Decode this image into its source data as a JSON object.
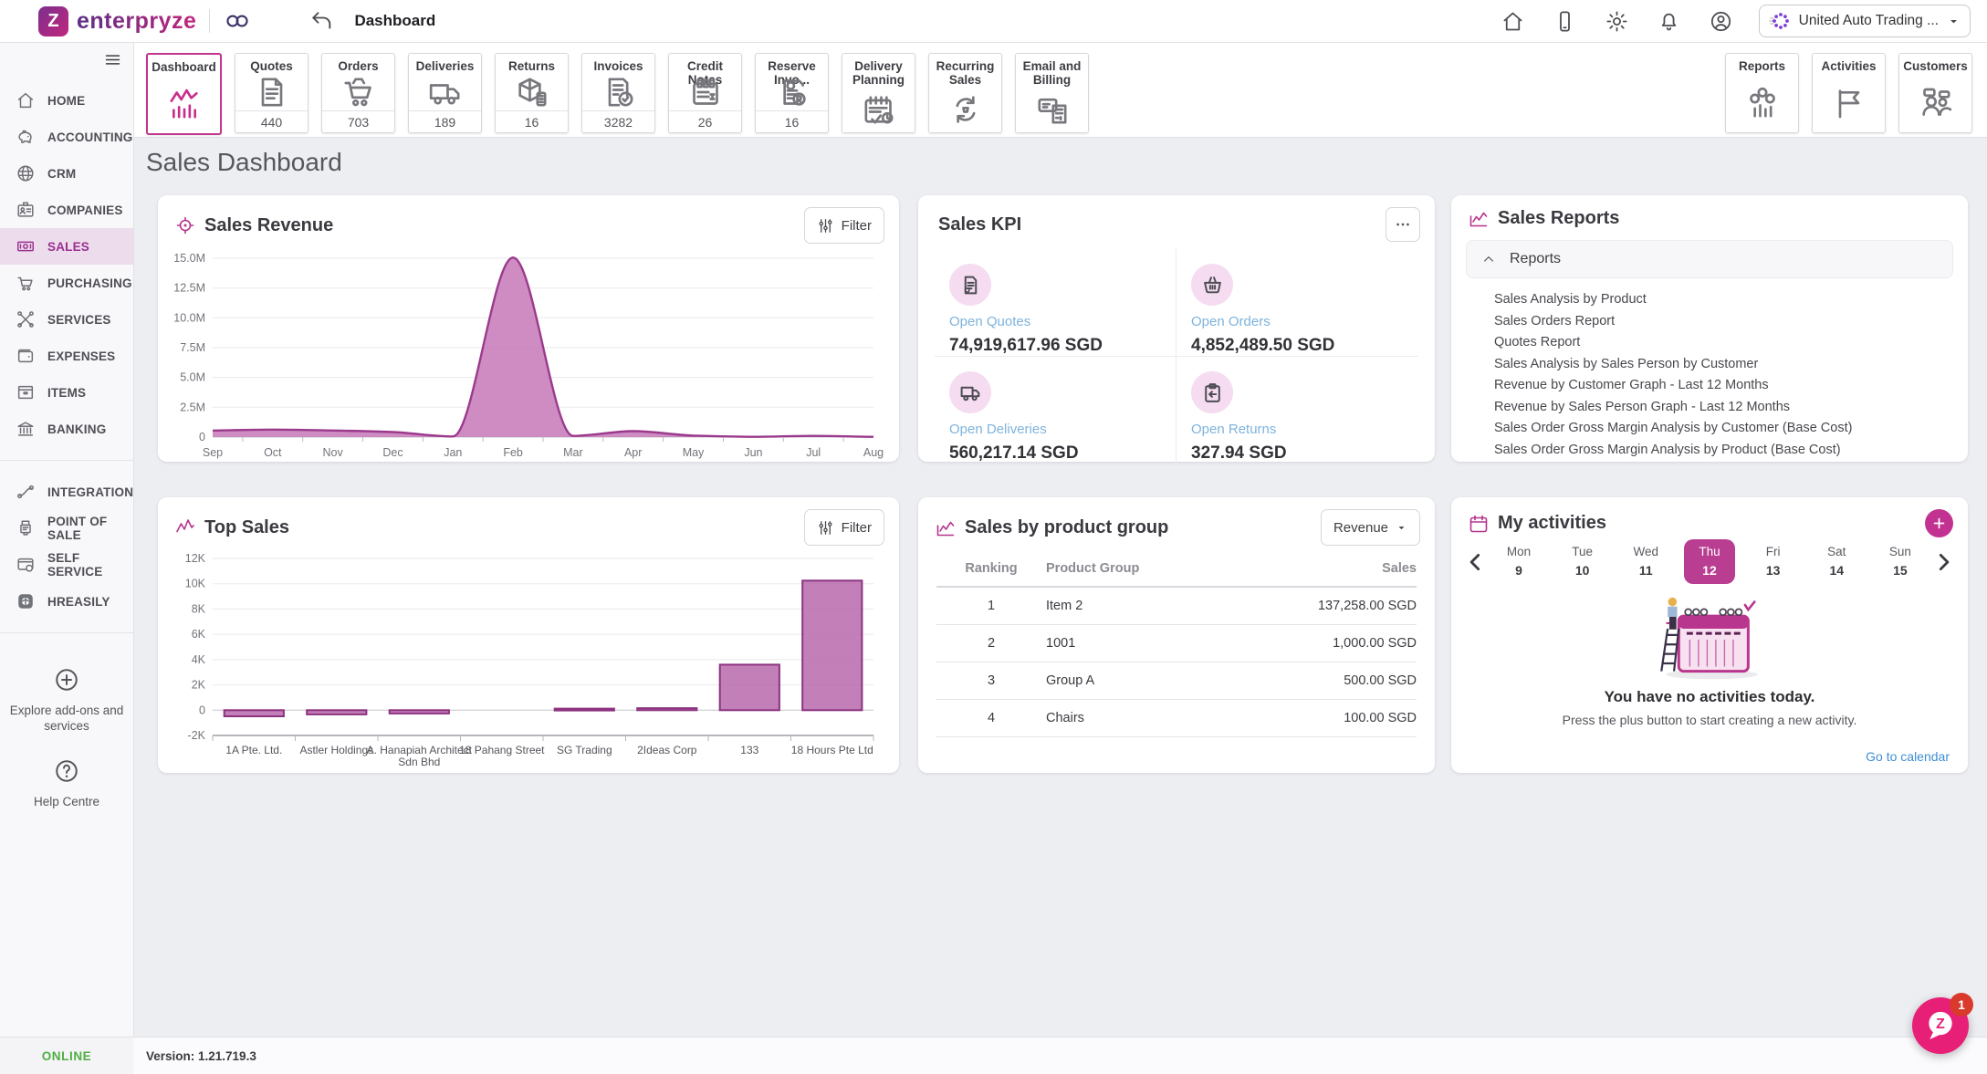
{
  "header": {
    "brand": "enterpryze",
    "brand_letter": "Z",
    "back_title": "Dashboard",
    "icons": [
      "home-icon",
      "mobile-icon",
      "gear-icon",
      "bell-icon",
      "user-icon"
    ],
    "company": "United Auto Trading ..."
  },
  "toolbar": {
    "tabs": [
      {
        "label": "Dashboard",
        "icon": "t-dashboard",
        "count": null,
        "active": true
      },
      {
        "label": "Quotes",
        "icon": "t-quotes",
        "count": "440"
      },
      {
        "label": "Orders",
        "icon": "t-orders",
        "count": "703"
      },
      {
        "label": "Deliveries",
        "icon": "t-deliveries",
        "count": "189"
      },
      {
        "label": "Returns",
        "icon": "t-returns",
        "count": "16"
      },
      {
        "label": "Invoices",
        "icon": "t-invoices",
        "count": "3282"
      },
      {
        "label": "Credit Notes",
        "icon": "t-creditnotes",
        "count": "26"
      },
      {
        "label": "Reserve Invo...",
        "icon": "t-reserveinv",
        "count": "16"
      },
      {
        "label": "Delivery Planning",
        "icon": "t-delivplan",
        "count": null
      },
      {
        "label": "Recurring Sales",
        "icon": "t-recurring",
        "count": null
      },
      {
        "label": "Email and Billing",
        "icon": "t-billing",
        "count": null
      }
    ],
    "right_tabs": [
      {
        "label": "Reports",
        "icon": "t-reports",
        "count": null
      },
      {
        "label": "Activities",
        "icon": "t-flag",
        "count": null
      },
      {
        "label": "Customers",
        "icon": "t-customers",
        "count": null
      }
    ]
  },
  "sidebar": {
    "items": [
      {
        "label": "HOME",
        "icon": "s-home"
      },
      {
        "label": "ACCOUNTING",
        "icon": "s-accounting"
      },
      {
        "label": "CRM",
        "icon": "s-crm"
      },
      {
        "label": "COMPANIES",
        "icon": "s-companies"
      },
      {
        "label": "SALES",
        "icon": "s-sales",
        "active": true
      },
      {
        "label": "PURCHASING",
        "icon": "s-purchasing"
      },
      {
        "label": "SERVICES",
        "icon": "s-services"
      },
      {
        "label": "EXPENSES",
        "icon": "s-expenses"
      },
      {
        "label": "ITEMS",
        "icon": "s-items"
      },
      {
        "label": "BANKING",
        "icon": "s-banking"
      }
    ],
    "secondary_items": [
      {
        "label": "INTEGRATION",
        "icon": "s-integration"
      },
      {
        "label": "POINT OF SALE",
        "icon": "s-pos"
      },
      {
        "label": "SELF SERVICE",
        "icon": "s-selfservice"
      },
      {
        "label": "HREASILY",
        "icon": "s-hreasily"
      }
    ],
    "explore_label": "Explore add-ons and services",
    "help_label": "Help Centre",
    "status": "ONLINE"
  },
  "page": {
    "title": "Sales Dashboard"
  },
  "panels": {
    "sales_revenue": {
      "title": "Sales Revenue",
      "filter_label": "Filter"
    },
    "sales_kpi": {
      "title": "Sales KPI",
      "items": [
        {
          "label": "Open Quotes",
          "value": "74,919,617.96 SGD",
          "icon": "kpi-quotes"
        },
        {
          "label": "Open Orders",
          "value": "4,852,489.50 SGD",
          "icon": "kpi-orders"
        },
        {
          "label": "Open Deliveries",
          "value": "560,217.14 SGD",
          "icon": "kpi-deliveries"
        },
        {
          "label": "Open Returns",
          "value": "327.94 SGD",
          "icon": "kpi-returns"
        }
      ]
    },
    "sales_reports": {
      "title": "Sales Reports",
      "group_label": "Reports",
      "items": [
        "Sales Analysis by Product",
        "Sales Orders Report",
        "Quotes Report",
        "Sales Analysis by Sales Person by Customer",
        "Revenue by Customer Graph - Last 12 Months",
        "Revenue by Sales Person Graph - Last 12 Months",
        "Sales Order Gross Margin Analysis by Customer (Base Cost)",
        "Sales Order Gross Margin Analysis by Product (Base Cost)"
      ]
    },
    "top_sales": {
      "title": "Top Sales",
      "filter_label": "Filter"
    },
    "product_group": {
      "title": "Sales by product group",
      "dropdown_label": "Revenue",
      "columns": [
        "Ranking",
        "Product Group",
        "Sales"
      ],
      "rows": [
        [
          "1",
          "Item 2",
          "137,258.00 SGD"
        ],
        [
          "2",
          "1001",
          "1,000.00 SGD"
        ],
        [
          "3",
          "Group A",
          "500.00 SGD"
        ],
        [
          "4",
          "Chairs",
          "100.00 SGD"
        ]
      ]
    },
    "activities": {
      "title": "My activities",
      "days": [
        {
          "dow": "Mon",
          "date": "9"
        },
        {
          "dow": "Tue",
          "date": "10"
        },
        {
          "dow": "Wed",
          "date": "11"
        },
        {
          "dow": "Thu",
          "date": "12",
          "active": true
        },
        {
          "dow": "Fri",
          "date": "13"
        },
        {
          "dow": "Sat",
          "date": "14"
        },
        {
          "dow": "Sun",
          "date": "15"
        }
      ],
      "empty_title": "You have no activities today.",
      "empty_sub": "Press the plus button to start creating a new activity.",
      "link_label": "Go to calendar"
    }
  },
  "footer": {
    "version": "Version: 1.21.719.3"
  },
  "chat": {
    "letter": "Z",
    "badge": "1"
  },
  "colors": {
    "accent_magenta": "#b5338c",
    "active_tab_border": "#c2368d",
    "kpi_label_blue": "#7db3dc",
    "link_blue": "#3f8fd6",
    "online_green": "#4fae43",
    "fab_pink": "#e81f76",
    "day_pill": "#b93e92"
  },
  "chart_data": [
    {
      "type": "area",
      "title": "Sales Revenue",
      "x": [
        "Sep",
        "Oct",
        "Nov",
        "Dec",
        "Jan",
        "Feb",
        "Mar",
        "Apr",
        "May",
        "Jun",
        "Jul",
        "Aug"
      ],
      "values_millions": [
        0.55,
        0.63,
        0.55,
        0.42,
        0.05,
        15.05,
        0.1,
        0.5,
        0.12,
        0.02,
        0.1,
        0.02
      ],
      "ylim": [
        0,
        15000000
      ],
      "ylabel_ticks": [
        "0",
        "2.5M",
        "5.0M",
        "7.5M",
        "10.0M",
        "12.5M",
        "15.0M"
      ],
      "grid": true,
      "legend": "none",
      "fill": "#c678b9",
      "stroke": "#9b3a8c"
    },
    {
      "type": "bar",
      "title": "Top Sales",
      "categories": [
        "1A Pte. Ltd.",
        "Astler Holdings",
        "A. Hanapiah Architect Sdn Bhd",
        "18 Pahang Street",
        "SG Trading",
        "2Ideas Corp",
        "133",
        "18 Hours Pte Ltd"
      ],
      "values": [
        -480,
        -330,
        -260,
        0,
        120,
        160,
        3600,
        10250
      ],
      "ylim": [
        -2000,
        12000
      ],
      "ytick_step": 2000,
      "grid": true,
      "legend": "none",
      "fill": "#b868aa",
      "stroke": "#8c3380"
    }
  ]
}
